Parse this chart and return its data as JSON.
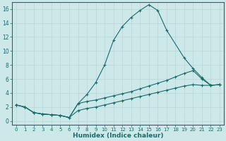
{
  "xlabel": "Humidex (Indice chaleur)",
  "xlim": [
    -0.5,
    23.5
  ],
  "ylim": [
    -0.5,
    17
  ],
  "yticks": [
    0,
    2,
    4,
    6,
    8,
    10,
    12,
    14,
    16
  ],
  "xticks": [
    0,
    1,
    2,
    3,
    4,
    5,
    6,
    7,
    8,
    9,
    10,
    11,
    12,
    13,
    14,
    15,
    16,
    17,
    18,
    19,
    20,
    21,
    22,
    23
  ],
  "bg_color": "#cde8e8",
  "line_color": "#1a6b6b",
  "grid_color": "#b8d4d4",
  "lines": [
    {
      "x": [
        0,
        1,
        2,
        3,
        4,
        5,
        6,
        7,
        8,
        9,
        10,
        11,
        12,
        13,
        14,
        15,
        16,
        17,
        19,
        20,
        21,
        22,
        23
      ],
      "y": [
        2.3,
        2.0,
        1.2,
        1.0,
        0.9,
        0.8,
        0.5,
        2.5,
        3.8,
        5.5,
        8.0,
        11.5,
        13.5,
        14.8,
        15.8,
        16.6,
        15.8,
        13.0,
        9.0,
        7.5,
        6.2,
        5.1,
        5.2
      ]
    },
    {
      "x": [
        0,
        1,
        2,
        3,
        4,
        5,
        6,
        7,
        8,
        9,
        10,
        11,
        12,
        13,
        14,
        15,
        16,
        17,
        18,
        19,
        20,
        21,
        22,
        23
      ],
      "y": [
        2.3,
        2.0,
        1.2,
        1.0,
        0.9,
        0.8,
        0.5,
        2.5,
        2.8,
        3.0,
        3.3,
        3.6,
        3.9,
        4.2,
        4.6,
        5.0,
        5.4,
        5.8,
        6.3,
        6.8,
        7.2,
        6.0,
        5.1,
        5.2
      ]
    },
    {
      "x": [
        0,
        1,
        2,
        3,
        4,
        5,
        6,
        7,
        8,
        9,
        10,
        11,
        12,
        13,
        14,
        15,
        16,
        17,
        18,
        19,
        20,
        21,
        22,
        23
      ],
      "y": [
        2.3,
        2.0,
        1.2,
        1.0,
        0.9,
        0.8,
        0.5,
        1.5,
        1.8,
        2.0,
        2.3,
        2.6,
        2.9,
        3.2,
        3.5,
        3.8,
        4.1,
        4.4,
        4.7,
        5.0,
        5.2,
        5.1,
        5.1,
        5.2
      ]
    }
  ]
}
